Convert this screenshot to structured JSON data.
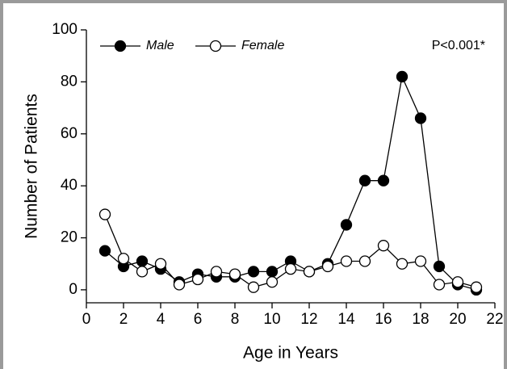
{
  "chart_data": {
    "type": "line",
    "xlabel": "Age in Years",
    "ylabel": "Number of Patients",
    "annotation": "P<0.001*",
    "x": [
      1,
      2,
      3,
      4,
      5,
      6,
      7,
      8,
      9,
      10,
      11,
      12,
      13,
      14,
      15,
      16,
      17,
      18,
      19,
      20,
      21
    ],
    "series": [
      {
        "name": "Male",
        "color": "#000000",
        "fill": "#000000",
        "values": [
          15,
          9,
          11,
          8,
          3,
          6,
          5,
          5,
          7,
          7,
          11,
          7,
          10,
          25,
          42,
          42,
          82,
          66,
          9,
          2,
          0
        ]
      },
      {
        "name": "Female",
        "color": "#000000",
        "fill": "#ffffff",
        "values": [
          29,
          12,
          7,
          10,
          2,
          4,
          7,
          6,
          1,
          3,
          8,
          7,
          9,
          11,
          11,
          17,
          10,
          11,
          2,
          3,
          1
        ]
      }
    ],
    "xlim": [
      0,
      22
    ],
    "xticks": [
      0,
      2,
      4,
      6,
      8,
      10,
      12,
      14,
      16,
      18,
      20,
      22
    ],
    "ylim": [
      -5,
      100
    ],
    "yticks": [
      0,
      20,
      40,
      60,
      80,
      100
    ],
    "grid": false
  }
}
